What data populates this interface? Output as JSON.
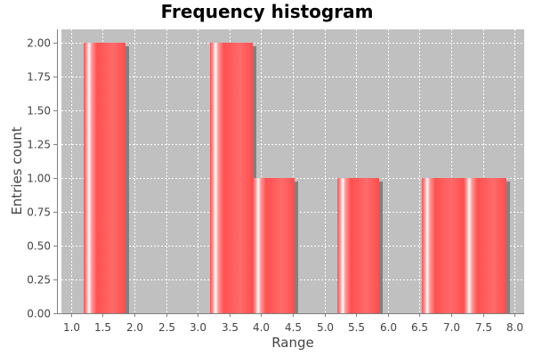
{
  "chart_data": {
    "type": "bar",
    "title": "Frequency histogram",
    "xlabel": "Range",
    "ylabel": "Entries count",
    "xlim": [
      0.85,
      8.15
    ],
    "ylim": [
      0,
      2.1
    ],
    "x_ticks": [
      "1.0",
      "1.5",
      "2.0",
      "2.5",
      "3.0",
      "3.5",
      "4.0",
      "4.5",
      "5.0",
      "5.5",
      "6.0",
      "6.5",
      "7.0",
      "7.5",
      "8.0"
    ],
    "y_ticks": [
      "0.00",
      "0.25",
      "0.50",
      "0.75",
      "1.00",
      "1.25",
      "1.50",
      "1.75",
      "2.00"
    ],
    "bins": [
      {
        "start": 1.2,
        "end": 1.867,
        "count": 2
      },
      {
        "start": 1.867,
        "end": 2.533,
        "count": 0
      },
      {
        "start": 2.533,
        "end": 3.2,
        "count": 0
      },
      {
        "start": 3.2,
        "end": 3.867,
        "count": 2
      },
      {
        "start": 3.867,
        "end": 4.533,
        "count": 1
      },
      {
        "start": 4.533,
        "end": 5.2,
        "count": 0
      },
      {
        "start": 5.2,
        "end": 5.867,
        "count": 1
      },
      {
        "start": 5.867,
        "end": 6.533,
        "count": 0
      },
      {
        "start": 6.533,
        "end": 7.2,
        "count": 1
      },
      {
        "start": 7.2,
        "end": 7.867,
        "count": 1
      }
    ],
    "grid": true,
    "colors": {
      "bar": "#ff5555",
      "plot_background": "#c0c0c0",
      "grid": "#ffffff",
      "shadow": "#808080"
    }
  }
}
